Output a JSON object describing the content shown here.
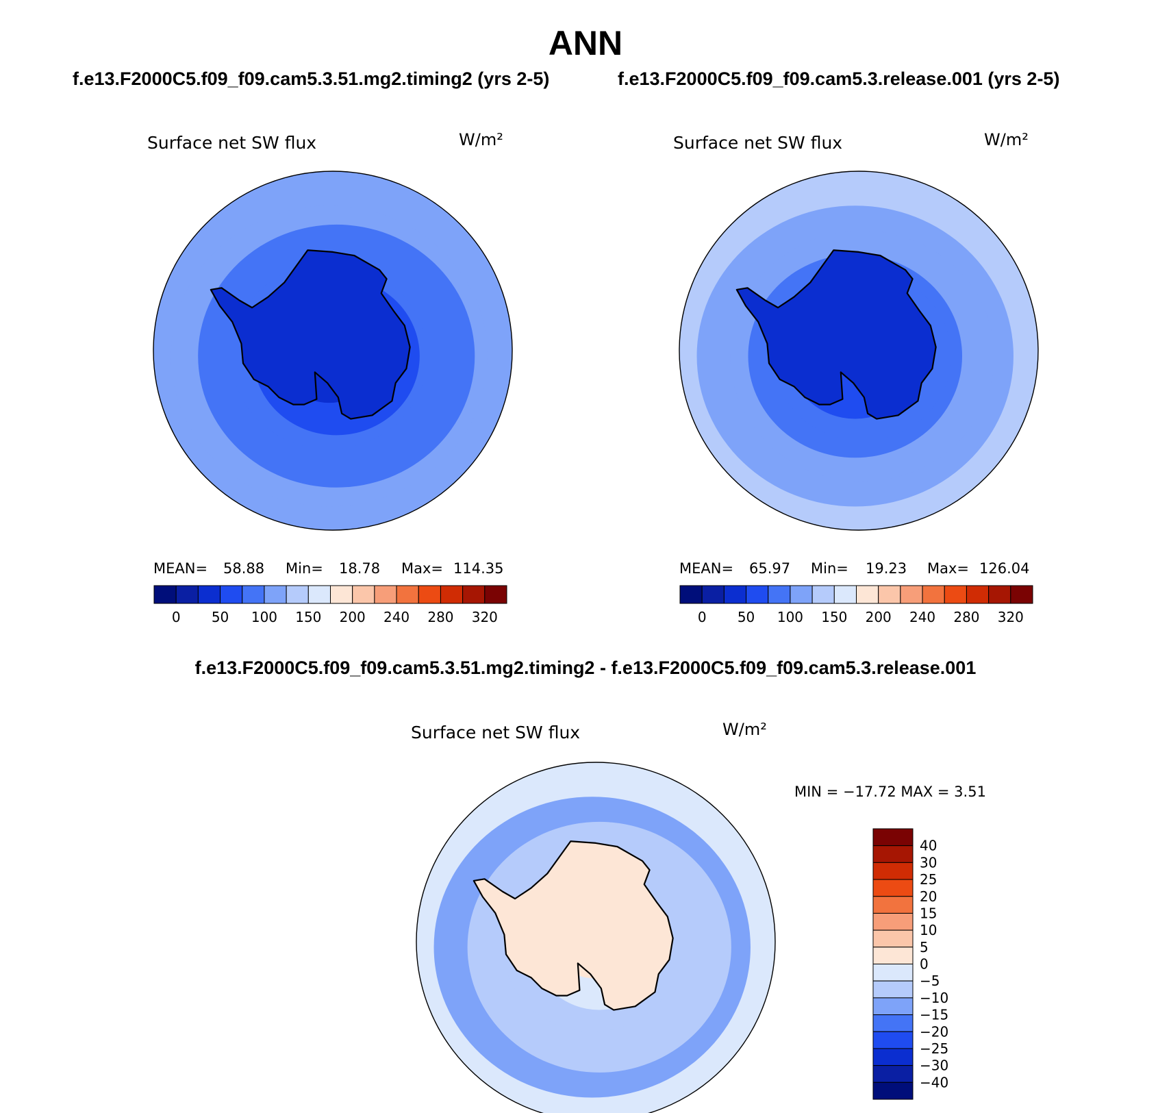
{
  "title": "ANN",
  "case_titles": [
    "f.e13.F2000C5.f09_f09.cam5.3.51.mg2.timing2 (yrs 2-5)",
    "f.e13.F2000C5.f09_f09.cam5.3.release.001 (yrs 2-5)"
  ],
  "diff_title": "f.e13.F2000C5.f09_f09.cam5.3.51.mg2.timing2 - f.e13.F2000C5.f09_f09.cam5.3.release.001",
  "colors": {
    "abs_scale": [
      "#000e7a",
      "#0a1fa3",
      "#0b2ed0",
      "#1f4cf0",
      "#4474f6",
      "#7ea3f9",
      "#b5cbfb",
      "#dbe8fc",
      "#fde6d6",
      "#fbc6aa",
      "#f79e79",
      "#f2733e",
      "#ec4b13",
      "#d02c04",
      "#a61603",
      "#7a0303"
    ],
    "diff_scale": [
      "#000e7a",
      "#0a1fa3",
      "#0b2ed0",
      "#1f4cf0",
      "#4474f6",
      "#7ea3f9",
      "#b5cbfb",
      "#dbe8fc",
      "#fde6d6",
      "#fbc6aa",
      "#f79e79",
      "#f2733e",
      "#ec4b13",
      "#d02c04",
      "#a61603",
      "#7a0303"
    ],
    "coastline": "#000000"
  },
  "chart_data": [
    {
      "type": "heatmap",
      "projection": "south-polar-stereographic",
      "title": "Surface net SW flux",
      "units": "W/m²",
      "stats": {
        "mean_label": "MEAN=",
        "mean": "58.88",
        "min_label": "Min=",
        "min": "18.78",
        "max_label": "Max=",
        "max": "114.35"
      },
      "colorbar_ticks": [
        "0",
        "50",
        "100",
        "150",
        "200",
        "240",
        "280",
        "320"
      ],
      "contour_levels": [
        0,
        25,
        50,
        75,
        100,
        125,
        150,
        175,
        200,
        220,
        240,
        260,
        280,
        300,
        320
      ],
      "field_rings": [
        {
          "lat_boundary": -36,
          "value": 110
        },
        {
          "lat_boundary": -42,
          "value": 90
        },
        {
          "lat_boundary": -55,
          "value": 75
        },
        {
          "lat_boundary": -60,
          "value": 60
        },
        {
          "lat_boundary": -72,
          "value": 40
        },
        {
          "lat_boundary": -82,
          "value": 25
        }
      ]
    },
    {
      "type": "heatmap",
      "projection": "south-polar-stereographic",
      "title": "Surface net SW flux",
      "units": "W/m²",
      "stats": {
        "mean_label": "MEAN=",
        "mean": "65.97",
        "min_label": "Min=",
        "min": "19.23",
        "max_label": "Max=",
        "max": "126.04"
      },
      "colorbar_ticks": [
        "0",
        "50",
        "100",
        "150",
        "200",
        "240",
        "280",
        "320"
      ],
      "contour_levels": [
        0,
        25,
        50,
        75,
        100,
        125,
        150,
        175,
        200,
        220,
        240,
        260,
        280,
        300,
        320
      ],
      "field_rings": [
        {
          "lat_boundary": -36,
          "value": 120
        },
        {
          "lat_boundary": -44,
          "value": 105
        },
        {
          "lat_boundary": -52,
          "value": 90
        },
        {
          "lat_boundary": -58,
          "value": 75
        },
        {
          "lat_boundary": -66,
          "value": 60
        },
        {
          "lat_boundary": -80,
          "value": 45
        }
      ]
    },
    {
      "type": "heatmap",
      "projection": "south-polar-stereographic",
      "title": "Surface net SW flux",
      "units": "W/m²",
      "stats_text": "MIN = −17.72 MAX =    3.51",
      "colorbar_ticks": [
        "40",
        "30",
        "25",
        "20",
        "15",
        "10",
        "5",
        "0",
        "−5",
        "−10",
        "−15",
        "−20",
        "−25",
        "−30",
        "−40"
      ],
      "contour_levels": [
        -40,
        -30,
        -25,
        -20,
        -15,
        -10,
        -5,
        0,
        5,
        10,
        15,
        20,
        25,
        30,
        40
      ],
      "field_rings": [
        {
          "lat_boundary": -36,
          "value": -12
        },
        {
          "lat_boundary": -44,
          "value": -9
        },
        {
          "lat_boundary": -58,
          "value": -6
        },
        {
          "lat_boundary": -66,
          "value": -3
        },
        {
          "lat_boundary": -78,
          "value": 2
        }
      ]
    }
  ]
}
